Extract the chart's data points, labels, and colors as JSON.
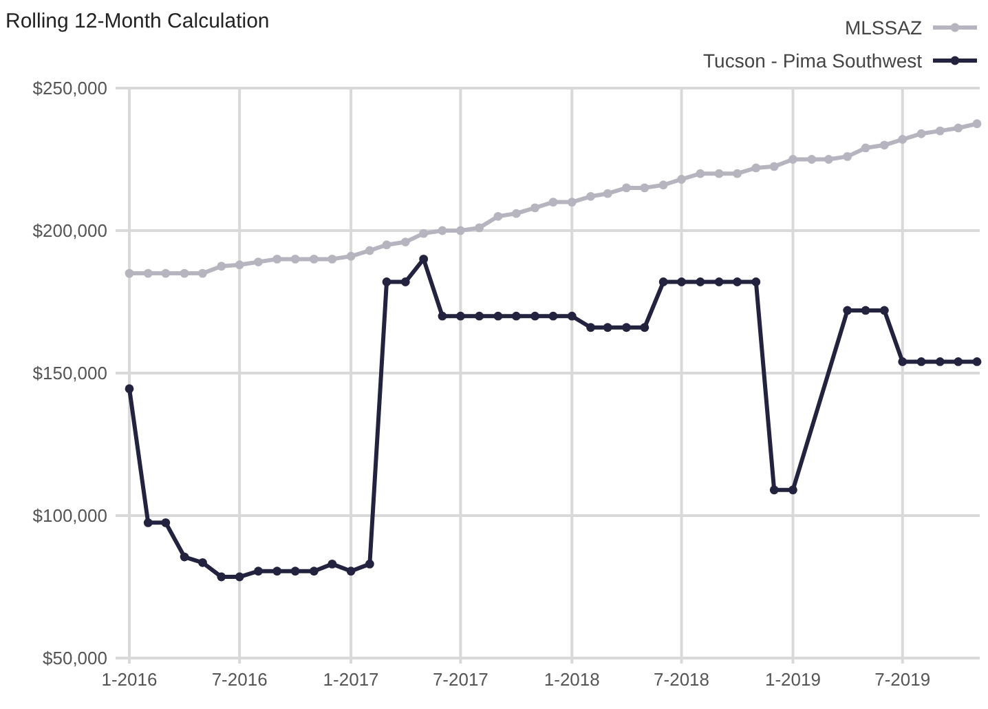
{
  "chart_data": {
    "type": "line",
    "title": "Rolling 12-Month Calculation",
    "x": [
      "2016-01",
      "2016-02",
      "2016-03",
      "2016-04",
      "2016-05",
      "2016-06",
      "2016-07",
      "2016-08",
      "2016-09",
      "2016-10",
      "2016-11",
      "2016-12",
      "2017-01",
      "2017-02",
      "2017-03",
      "2017-04",
      "2017-05",
      "2017-06",
      "2017-07",
      "2017-08",
      "2017-09",
      "2017-10",
      "2017-11",
      "2017-12",
      "2018-01",
      "2018-02",
      "2018-03",
      "2018-04",
      "2018-05",
      "2018-06",
      "2018-07",
      "2018-08",
      "2018-09",
      "2018-10",
      "2018-11",
      "2018-12",
      "2019-01",
      "2019-02",
      "2019-03",
      "2019-04",
      "2019-05",
      "2019-06",
      "2019-07",
      "2019-08",
      "2019-09",
      "2019-10",
      "2019-11"
    ],
    "series": [
      {
        "name": "MLSSAZ",
        "color": "#b5b4bf",
        "values": [
          185000,
          185000,
          185000,
          185000,
          185000,
          187500,
          188000,
          189000,
          190000,
          190000,
          190000,
          190000,
          191000,
          193000,
          195000,
          196000,
          199000,
          200000,
          200000,
          201000,
          205000,
          206000,
          208000,
          210000,
          210000,
          212000,
          213000,
          215000,
          215000,
          216000,
          218000,
          220000,
          220000,
          220000,
          222000,
          222500,
          225000,
          225000,
          225000,
          226000,
          229000,
          230000,
          232000,
          234000,
          235000,
          236000,
          237500
        ]
      },
      {
        "name": "Tucson - Pima Southwest",
        "color": "#23233f",
        "x": [
          "2016-01",
          "2016-02",
          "2016-03",
          "2016-04",
          "2016-05",
          "2016-06",
          "2016-07",
          "2016-08",
          "2016-09",
          "2016-10",
          "2016-11",
          "2016-12",
          "2017-01",
          "2017-02",
          "2017-03",
          "2017-04",
          "2017-05",
          "2017-06",
          "2017-07",
          "2017-08",
          "2017-09",
          "2017-10",
          "2017-11",
          "2017-12",
          "2018-01",
          "2018-02",
          "2018-03",
          "2018-04",
          "2018-05",
          "2018-06",
          "2018-07",
          "2018-08",
          "2018-09",
          "2018-10",
          "2018-11",
          "2018-12",
          "2019-01",
          "2019-04",
          "2019-05",
          "2019-06",
          "2019-07",
          "2019-08",
          "2019-09",
          "2019-10",
          "2019-11"
        ],
        "values": [
          144500,
          97500,
          97500,
          85500,
          83500,
          78500,
          78500,
          80500,
          80500,
          80500,
          80500,
          83000,
          80500,
          83000,
          182000,
          182000,
          190000,
          170000,
          170000,
          170000,
          170000,
          170000,
          170000,
          170000,
          170000,
          166000,
          166000,
          166000,
          166000,
          182000,
          182000,
          182000,
          182000,
          182000,
          182000,
          109000,
          109000,
          172000,
          172000,
          172000,
          154000,
          154000,
          154000,
          154000,
          154000
        ]
      }
    ],
    "xlim": [
      "2016-01",
      "2019-11"
    ],
    "xticks": [
      {
        "value": "2016-01",
        "label": "1-2016"
      },
      {
        "value": "2016-07",
        "label": "7-2016"
      },
      {
        "value": "2017-01",
        "label": "1-2017"
      },
      {
        "value": "2017-07",
        "label": "7-2017"
      },
      {
        "value": "2018-01",
        "label": "1-2018"
      },
      {
        "value": "2018-07",
        "label": "7-2018"
      },
      {
        "value": "2019-01",
        "label": "1-2019"
      },
      {
        "value": "2019-07",
        "label": "7-2019"
      }
    ],
    "ylim": [
      50000,
      250000
    ],
    "yticks": [
      {
        "value": 50000,
        "label": "$50,000"
      },
      {
        "value": 100000,
        "label": "$100,000"
      },
      {
        "value": 150000,
        "label": "$150,000"
      },
      {
        "value": 200000,
        "label": "$200,000"
      },
      {
        "value": 250000,
        "label": "$250,000"
      }
    ],
    "grid": true,
    "legend": "top right",
    "marker": "circle",
    "line_style": "solid"
  }
}
